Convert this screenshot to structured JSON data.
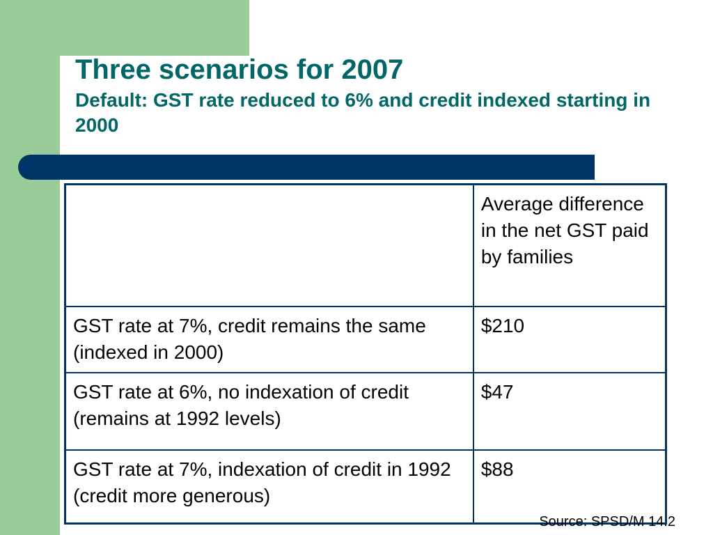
{
  "slide": {
    "title": "Three scenarios for 2007",
    "subtitle": "Default: GST rate reduced to 6% and credit indexed starting in 2000",
    "colors": {
      "green": "#99cc99",
      "title_teal": "#006666",
      "navy": "#003366"
    }
  },
  "table": {
    "header": {
      "scenario": "",
      "difference": "Average difference in the net GST paid by families"
    },
    "rows": [
      {
        "scenario": "GST rate at 7%, credit remains the same (indexed in 2000)",
        "difference": "$210"
      },
      {
        "scenario": "GST rate at 6%, no indexation of credit (remains at 1992 levels)",
        "difference": "$47"
      },
      {
        "scenario": "GST rate at 7%, indexation of credit in 1992 (credit more generous)",
        "difference": "$88"
      }
    ]
  },
  "footer": {
    "source": "Source: SPSD/M 14.2"
  }
}
